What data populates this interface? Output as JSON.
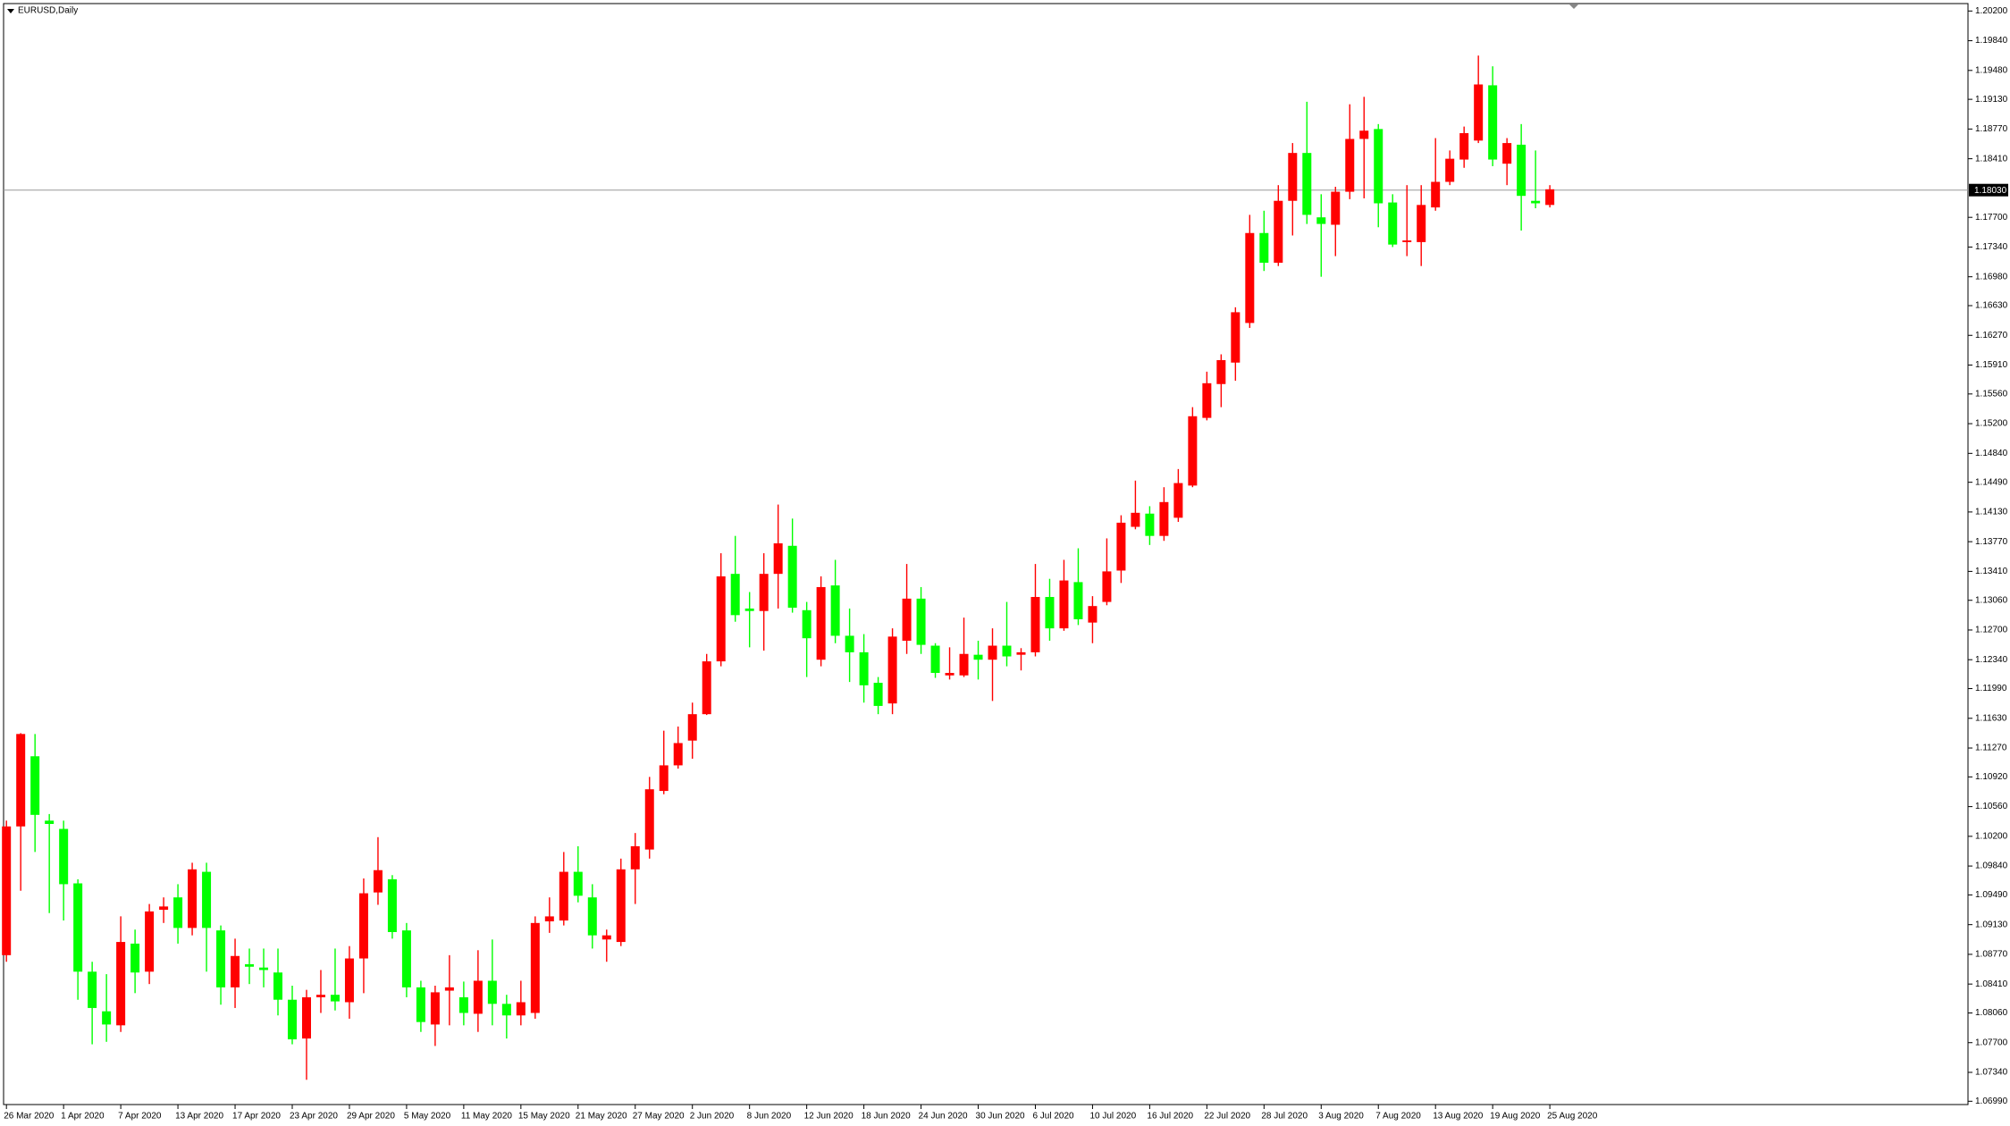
{
  "chart_data": {
    "type": "candlestick",
    "title": "EURUSD,Daily",
    "up_color": "#ff0000",
    "down_color": "#00ff00",
    "line_color": "#000000",
    "categories": [
      "26 Mar 2020",
      null,
      null,
      null,
      "1 Apr 2020",
      null,
      null,
      null,
      "7 Apr 2020",
      null,
      null,
      null,
      "13 Apr 2020",
      null,
      null,
      null,
      "17 Apr 2020",
      null,
      null,
      null,
      "23 Apr 2020",
      null,
      null,
      null,
      "29 Apr 2020",
      null,
      null,
      null,
      "5 May 2020",
      null,
      null,
      null,
      "11 May 2020",
      null,
      null,
      null,
      "15 May 2020",
      null,
      null,
      null,
      "21 May 2020",
      null,
      null,
      null,
      "27 May 2020",
      null,
      null,
      null,
      "2 Jun 2020",
      null,
      null,
      null,
      "8 Jun 2020",
      null,
      null,
      null,
      "12 Jun 2020",
      null,
      null,
      null,
      "18 Jun 2020",
      null,
      null,
      null,
      "24 Jun 2020",
      null,
      null,
      null,
      "30 Jun 2020",
      null,
      null,
      null,
      "6 Jul 2020",
      null,
      null,
      null,
      "10 Jul 2020",
      null,
      null,
      null,
      "16 Jul 2020",
      null,
      null,
      null,
      "22 Jul 2020",
      null,
      null,
      null,
      "28 Jul 2020",
      null,
      null,
      null,
      "3 Aug 2020",
      null,
      null,
      null,
      "7 Aug 2020",
      null,
      null,
      null,
      "13 Aug 2020",
      null,
      null,
      null,
      "19 Aug 2020",
      null,
      null,
      null,
      "25 Aug 2020"
    ],
    "open": [
      1.0876,
      1.1032,
      1.1117,
      1.1039,
      1.1029,
      1.0963,
      1.0856,
      1.0808,
      1.0791,
      1.089,
      1.0856,
      1.0931,
      1.0946,
      1.0909,
      1.0977,
      1.0906,
      1.0837,
      1.0865,
      1.0861,
      1.0855,
      1.0822,
      1.0775,
      1.0825,
      1.0828,
      1.0819,
      1.0872,
      1.0952,
      1.0968,
      1.0906,
      1.0837,
      1.0792,
      1.0833,
      1.0825,
      1.0805,
      1.0845,
      1.0817,
      1.0803,
      1.0806,
      1.0917,
      1.0918,
      1.0977,
      1.0946,
      1.0895,
      1.0892,
      1.098,
      1.1004,
      1.1075,
      1.1106,
      1.1136,
      1.1168,
      1.1232,
      1.1338,
      1.1296,
      1.1293,
      1.1338,
      1.1372,
      1.1294,
      1.1234,
      1.1324,
      1.1263,
      1.1243,
      1.1206,
      1.1181,
      1.1257,
      1.1308,
      1.1251,
      1.1215,
      1.1215,
      1.124,
      1.1234,
      1.1251,
      1.124,
      1.1243,
      1.131,
      1.1272,
      1.1328,
      1.1279,
      1.1304,
      1.1342,
      1.1395,
      1.1411,
      1.1384,
      1.1406,
      1.1445,
      1.1527,
      1.1568,
      1.1594,
      1.1642,
      1.1751,
      1.1715,
      1.179,
      1.1848,
      1.177,
      1.1761,
      1.1801,
      1.1865,
      1.1877,
      1.1788,
      1.174,
      1.174,
      1.1782,
      1.1813,
      1.184,
      1.1863,
      1.193,
      1.1835,
      1.1858,
      1.179,
      1.1785
    ],
    "high": [
      1.1039,
      1.1145,
      1.1144,
      1.1047,
      1.1039,
      1.0968,
      1.0868,
      1.0853,
      1.0923,
      1.0907,
      1.0938,
      1.0946,
      1.0962,
      1.0988,
      1.0988,
      1.0912,
      1.0896,
      1.0884,
      1.0884,
      1.0884,
      1.0839,
      1.0834,
      1.0858,
      1.0884,
      1.0887,
      1.0969,
      1.1019,
      1.0973,
      1.0915,
      1.0845,
      1.0839,
      1.0876,
      1.0844,
      1.0882,
      1.0895,
      1.0828,
      1.0845,
      1.0923,
      1.0946,
      1.1001,
      1.1008,
      1.0962,
      1.0907,
      1.0993,
      1.1024,
      1.1092,
      1.1148,
      1.1153,
      1.1182,
      1.1241,
      1.1363,
      1.1384,
      1.1316,
      1.1363,
      1.1422,
      1.1405,
      1.1304,
      1.1335,
      1.1355,
      1.1296,
      1.1265,
      1.1213,
      1.1272,
      1.135,
      1.1322,
      1.1254,
      1.1249,
      1.1285,
      1.1257,
      1.1272,
      1.1304,
      1.1248,
      1.135,
      1.1332,
      1.1355,
      1.1369,
      1.1311,
      1.1381,
      1.1409,
      1.1451,
      1.142,
      1.1443,
      1.1465,
      1.154,
      1.1583,
      1.1604,
      1.1661,
      1.1773,
      1.1778,
      1.1809,
      1.186,
      1.191,
      1.1798,
      1.1807,
      1.1907,
      1.1916,
      1.1883,
      1.1798,
      1.1809,
      1.1809,
      1.1866,
      1.1851,
      1.188,
      1.1966,
      1.1953,
      1.1866,
      1.1883,
      1.1851,
      1.1809
    ],
    "low": [
      1.0868,
      1.0954,
      1.1001,
      1.0927,
      1.0918,
      1.0822,
      1.0768,
      1.0771,
      1.0783,
      1.083,
      1.0841,
      1.0915,
      1.089,
      1.09,
      1.0856,
      1.0816,
      1.0812,
      1.0841,
      1.0837,
      1.0803,
      1.0768,
      1.0725,
      1.0806,
      1.0809,
      1.0799,
      1.083,
      1.0937,
      1.0896,
      1.0825,
      1.0783,
      1.0766,
      1.0791,
      1.0791,
      1.0783,
      1.0791,
      1.0775,
      1.0791,
      1.0799,
      1.0903,
      1.0912,
      1.094,
      1.0884,
      1.0868,
      1.0887,
      1.0938,
      1.0993,
      1.1071,
      1.1102,
      1.1114,
      1.1167,
      1.1226,
      1.128,
      1.1249,
      1.1245,
      1.1296,
      1.1291,
      1.1213,
      1.1226,
      1.1254,
      1.1207,
      1.1182,
      1.1168,
      1.1168,
      1.1241,
      1.1241,
      1.1212,
      1.121,
      1.1213,
      1.121,
      1.1184,
      1.1226,
      1.1221,
      1.1238,
      1.1257,
      1.1269,
      1.1276,
      1.1254,
      1.13,
      1.1327,
      1.1392,
      1.1373,
      1.1378,
      1.1401,
      1.1443,
      1.1524,
      1.154,
      1.1572,
      1.1636,
      1.1705,
      1.1711,
      1.1748,
      1.1762,
      1.1698,
      1.1723,
      1.1792,
      1.1793,
      1.1758,
      1.1734,
      1.1723,
      1.1711,
      1.1778,
      1.1809,
      1.183,
      1.186,
      1.1832,
      1.1809,
      1.1754,
      1.1781,
      1.1782
    ],
    "close": [
      1.1032,
      1.1144,
      1.1046,
      1.1035,
      1.0962,
      1.0856,
      1.0812,
      1.0792,
      1.0892,
      1.0855,
      1.0929,
      1.0935,
      1.0909,
      1.098,
      1.0909,
      1.0837,
      1.0875,
      1.0862,
      1.0858,
      1.0822,
      1.0774,
      1.0825,
      1.0828,
      1.082,
      1.0872,
      1.0951,
      1.0979,
      1.0904,
      1.0837,
      1.0795,
      1.0831,
      1.0837,
      1.0806,
      1.0845,
      1.0817,
      1.0803,
      1.0819,
      1.0915,
      1.0923,
      1.0977,
      1.0948,
      1.09,
      1.09,
      1.098,
      1.1008,
      1.1077,
      1.1106,
      1.1133,
      1.1168,
      1.1232,
      1.1335,
      1.1288,
      1.1293,
      1.1338,
      1.1375,
      1.1297,
      1.126,
      1.1322,
      1.1263,
      1.1243,
      1.1203,
      1.1178,
      1.1262,
      1.1308,
      1.1252,
      1.1218,
      1.1218,
      1.1241,
      1.1234,
      1.1251,
      1.1238,
      1.1243,
      1.131,
      1.1272,
      1.133,
      1.1283,
      1.1299,
      1.1341,
      1.14,
      1.1412,
      1.1384,
      1.1425,
      1.1448,
      1.1529,
      1.1569,
      1.1597,
      1.1655,
      1.1751,
      1.1715,
      1.179,
      1.1848,
      1.1773,
      1.1762,
      1.1801,
      1.1865,
      1.1875,
      1.1787,
      1.1737,
      1.1742,
      1.1785,
      1.1813,
      1.1841,
      1.1872,
      1.1931,
      1.184,
      1.186,
      1.1796,
      1.1787,
      1.1804
    ],
    "ylim": [
      1.0695,
      1.2029
    ],
    "yticks": [
      {
        "value": 1.202,
        "label": "1.20200"
      },
      {
        "value": 1.1984,
        "label": "1.19840"
      },
      {
        "value": 1.1948,
        "label": "1.19480"
      },
      {
        "value": 1.1913,
        "label": "1.19130"
      },
      {
        "value": 1.1877,
        "label": "1.18770"
      },
      {
        "value": 1.1841,
        "label": "1.18410"
      },
      {
        "value": 1.177,
        "label": "1.17700"
      },
      {
        "value": 1.1734,
        "label": "1.17340"
      },
      {
        "value": 1.1698,
        "label": "1.16980"
      },
      {
        "value": 1.1663,
        "label": "1.16630"
      },
      {
        "value": 1.1627,
        "label": "1.16270"
      },
      {
        "value": 1.1591,
        "label": "1.15910"
      },
      {
        "value": 1.1556,
        "label": "1.15560"
      },
      {
        "value": 1.152,
        "label": "1.15200"
      },
      {
        "value": 1.1484,
        "label": "1.14840"
      },
      {
        "value": 1.1449,
        "label": "1.14490"
      },
      {
        "value": 1.1413,
        "label": "1.14130"
      },
      {
        "value": 1.1377,
        "label": "1.13770"
      },
      {
        "value": 1.1341,
        "label": "1.13410"
      },
      {
        "value": 1.1306,
        "label": "1.13060"
      },
      {
        "value": 1.127,
        "label": "1.12700"
      },
      {
        "value": 1.1234,
        "label": "1.12340"
      },
      {
        "value": 1.1199,
        "label": "1.11990"
      },
      {
        "value": 1.1163,
        "label": "1.11630"
      },
      {
        "value": 1.1127,
        "label": "1.11270"
      },
      {
        "value": 1.1092,
        "label": "1.10920"
      },
      {
        "value": 1.1056,
        "label": "1.10560"
      },
      {
        "value": 1.102,
        "label": "1.10200"
      },
      {
        "value": 1.0984,
        "label": "1.09840"
      },
      {
        "value": 1.0949,
        "label": "1.09490"
      },
      {
        "value": 1.0913,
        "label": "1.09130"
      },
      {
        "value": 1.0877,
        "label": "1.08770"
      },
      {
        "value": 1.0841,
        "label": "1.08410"
      },
      {
        "value": 1.0806,
        "label": "1.08060"
      },
      {
        "value": 1.077,
        "label": "1.07700"
      },
      {
        "value": 1.0734,
        "label": "1.07340"
      },
      {
        "value": 1.0699,
        "label": "1.06990"
      }
    ],
    "current_price": {
      "value": 1.1803,
      "label": "1.18030"
    },
    "grid": false
  }
}
